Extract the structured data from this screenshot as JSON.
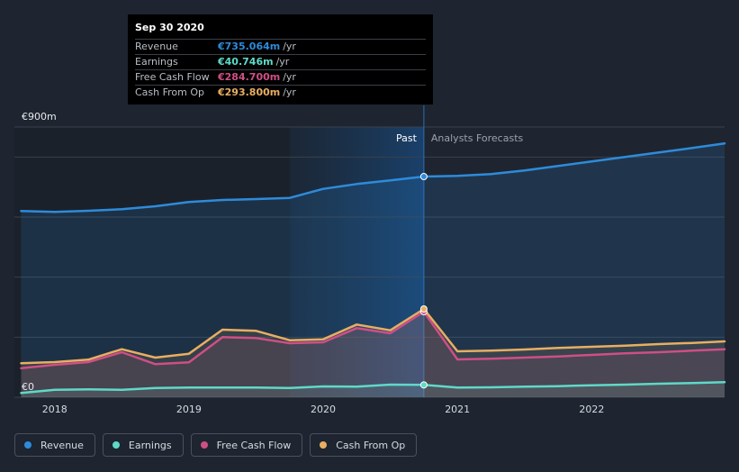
{
  "tooltip": {
    "date": "Sep 30 2020",
    "rows": [
      {
        "name": "Revenue",
        "value": "€735.064m",
        "unit": "/yr",
        "color": "#2e8bda"
      },
      {
        "name": "Earnings",
        "value": "€40.746m",
        "unit": "/yr",
        "color": "#5fd9c8"
      },
      {
        "name": "Free Cash Flow",
        "value": "€284.700m",
        "unit": "/yr",
        "color": "#cf4f85"
      },
      {
        "name": "Cash From Op",
        "value": "€293.800m",
        "unit": "/yr",
        "color": "#e8ae62"
      }
    ]
  },
  "labels": {
    "past": "Past",
    "forecast": "Analysts Forecasts"
  },
  "legend": [
    {
      "name": "Revenue",
      "color": "#2e8bda"
    },
    {
      "name": "Earnings",
      "color": "#5fd9c8"
    },
    {
      "name": "Free Cash Flow",
      "color": "#cf4f85"
    },
    {
      "name": "Cash From Op",
      "color": "#e8ae62"
    }
  ],
  "chart_data": {
    "type": "area",
    "unit": "€m",
    "ylim": [
      0,
      900
    ],
    "y_tick_labels": [
      {
        "value": 900,
        "label": "€900m"
      },
      {
        "value": 0,
        "label": "€0"
      }
    ],
    "xlim": [
      2017.7,
      2022.99
    ],
    "x_ticks": [
      2018,
      2019,
      2020,
      2021,
      2022
    ],
    "x_tick_labels": [
      "2018",
      "2019",
      "2020",
      "2021",
      "2022"
    ],
    "grid": true,
    "highlight_date": 2020.75,
    "forecast_start": 2020.75,
    "past_shade_start": 2019.75,
    "series": [
      {
        "name": "Revenue",
        "color": "#2e8bda",
        "points": [
          [
            2017.75,
            620
          ],
          [
            2018.0,
            617
          ],
          [
            2018.25,
            621
          ],
          [
            2018.5,
            626
          ],
          [
            2018.75,
            636
          ],
          [
            2019.0,
            650
          ],
          [
            2019.25,
            657
          ],
          [
            2019.5,
            660
          ],
          [
            2019.75,
            664
          ],
          [
            2020.0,
            694
          ],
          [
            2020.25,
            710
          ],
          [
            2020.5,
            722
          ],
          [
            2020.75,
            735
          ],
          [
            2021.0,
            737
          ],
          [
            2021.25,
            743
          ],
          [
            2021.5,
            755
          ],
          [
            2021.75,
            770
          ],
          [
            2022.0,
            785
          ],
          [
            2022.25,
            800
          ],
          [
            2022.5,
            815
          ],
          [
            2022.75,
            830
          ],
          [
            2022.99,
            845
          ]
        ]
      },
      {
        "name": "Earnings",
        "color": "#5fd9c8",
        "points": [
          [
            2017.75,
            14
          ],
          [
            2018.0,
            25
          ],
          [
            2018.25,
            26
          ],
          [
            2018.5,
            25
          ],
          [
            2018.75,
            31
          ],
          [
            2019.0,
            32
          ],
          [
            2019.25,
            32
          ],
          [
            2019.5,
            32
          ],
          [
            2019.75,
            31
          ],
          [
            2020.0,
            36
          ],
          [
            2020.25,
            35
          ],
          [
            2020.5,
            42
          ],
          [
            2020.75,
            41
          ],
          [
            2021.0,
            32
          ],
          [
            2021.25,
            33
          ],
          [
            2021.5,
            35
          ],
          [
            2021.75,
            37
          ],
          [
            2022.0,
            40
          ],
          [
            2022.25,
            42
          ],
          [
            2022.5,
            45
          ],
          [
            2022.75,
            47
          ],
          [
            2022.99,
            50
          ]
        ]
      },
      {
        "name": "Free Cash Flow",
        "color": "#cf4f85",
        "points": [
          [
            2017.75,
            97
          ],
          [
            2018.0,
            108
          ],
          [
            2018.25,
            117
          ],
          [
            2018.5,
            150
          ],
          [
            2018.75,
            110
          ],
          [
            2019.0,
            116
          ],
          [
            2019.25,
            200
          ],
          [
            2019.5,
            197
          ],
          [
            2019.75,
            180
          ],
          [
            2020.0,
            183
          ],
          [
            2020.25,
            230
          ],
          [
            2020.5,
            213
          ],
          [
            2020.75,
            285
          ],
          [
            2021.0,
            126
          ],
          [
            2021.25,
            128
          ],
          [
            2021.5,
            132
          ],
          [
            2021.75,
            136
          ],
          [
            2022.0,
            141
          ],
          [
            2022.25,
            146
          ],
          [
            2022.5,
            150
          ],
          [
            2022.75,
            155
          ],
          [
            2022.99,
            160
          ]
        ]
      },
      {
        "name": "Cash From Op",
        "color": "#e8ae62",
        "points": [
          [
            2017.75,
            113
          ],
          [
            2018.0,
            117
          ],
          [
            2018.25,
            125
          ],
          [
            2018.5,
            160
          ],
          [
            2018.75,
            132
          ],
          [
            2019.0,
            145
          ],
          [
            2019.25,
            225
          ],
          [
            2019.5,
            221
          ],
          [
            2019.75,
            190
          ],
          [
            2020.0,
            193
          ],
          [
            2020.25,
            242
          ],
          [
            2020.5,
            223
          ],
          [
            2020.75,
            294
          ],
          [
            2021.0,
            153
          ],
          [
            2021.25,
            155
          ],
          [
            2021.5,
            159
          ],
          [
            2021.75,
            164
          ],
          [
            2022.0,
            168
          ],
          [
            2022.25,
            172
          ],
          [
            2022.5,
            177
          ],
          [
            2022.75,
            181
          ],
          [
            2022.99,
            186
          ]
        ]
      }
    ]
  }
}
